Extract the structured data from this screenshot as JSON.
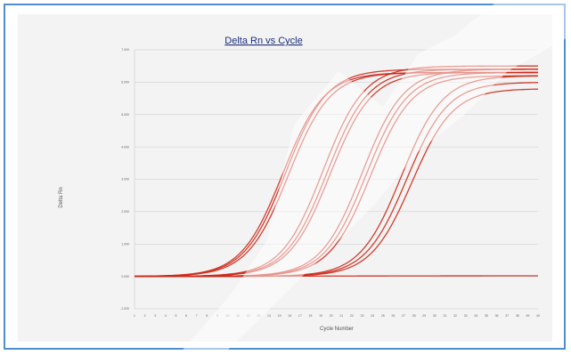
{
  "chart_data": {
    "type": "line",
    "title": "Delta Rn vs Cycle",
    "xlabel": "Cycle Number",
    "ylabel": "Delta Rn",
    "x": [
      1,
      2,
      3,
      4,
      5,
      6,
      7,
      8,
      9,
      10,
      11,
      12,
      13,
      14,
      15,
      16,
      17,
      18,
      19,
      20,
      21,
      22,
      23,
      24,
      25,
      26,
      27,
      28,
      29,
      30,
      31,
      32,
      33,
      34,
      35,
      36,
      37,
      38,
      39,
      40
    ],
    "xlim": [
      1,
      40
    ],
    "ylim": [
      -1,
      7
    ],
    "y_ticks": [
      "-1.000",
      "0.000",
      "1.000",
      "2.000",
      "3.000",
      "4.000",
      "5.000",
      "6.000",
      "7.000"
    ],
    "grid": "horizontal",
    "line_color": "#cc2a1a",
    "curve_shape": "sigmoid",
    "series": [
      {
        "plateau": 6.3,
        "midpoint": 15.3,
        "steepness": 0.5
      },
      {
        "plateau": 6.4,
        "midpoint": 15.6,
        "steepness": 0.5
      },
      {
        "plateau": 6.3,
        "midpoint": 15.9,
        "steepness": 0.5
      },
      {
        "plateau": 6.5,
        "midpoint": 19.2,
        "steepness": 0.5
      },
      {
        "plateau": 6.4,
        "midpoint": 19.6,
        "steepness": 0.5
      },
      {
        "plateau": 6.3,
        "midpoint": 19.9,
        "steepness": 0.5
      },
      {
        "plateau": 6.4,
        "midpoint": 23.0,
        "steepness": 0.5
      },
      {
        "plateau": 6.3,
        "midpoint": 23.4,
        "steepness": 0.5
      },
      {
        "plateau": 6.2,
        "midpoint": 23.8,
        "steepness": 0.5
      },
      {
        "plateau": 6.2,
        "midpoint": 26.8,
        "steepness": 0.5
      },
      {
        "plateau": 6.0,
        "midpoint": 27.3,
        "steepness": 0.5
      },
      {
        "plateau": 5.8,
        "midpoint": 27.8,
        "steepness": 0.5
      },
      {
        "plateau": 0.02,
        "midpoint": 20,
        "steepness": 0.1
      }
    ]
  }
}
